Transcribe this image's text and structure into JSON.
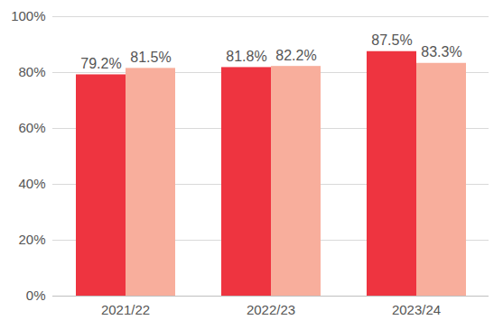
{
  "chart_data": {
    "type": "bar",
    "categories": [
      "2021/22",
      "2022/23",
      "2023/24"
    ],
    "series": [
      {
        "color": "#ee3440",
        "values": [
          79.2,
          81.8,
          87.5
        ],
        "value_labels": [
          "79.2%",
          "81.8%",
          "87.5%"
        ]
      },
      {
        "color": "#f8ae9c",
        "values": [
          81.5,
          82.2,
          83.3
        ],
        "value_labels": [
          "81.5%",
          "82.2%",
          "83.3%"
        ]
      }
    ],
    "ylim": [
      0,
      100
    ],
    "yticks": [
      {
        "value": 0,
        "label": "0%"
      },
      {
        "value": 20,
        "label": "20%"
      },
      {
        "value": 40,
        "label": "40%"
      },
      {
        "value": 60,
        "label": "60%"
      },
      {
        "value": 80,
        "label": "80%"
      },
      {
        "value": 100,
        "label": "100%"
      }
    ],
    "grid": true,
    "data_labels": true
  }
}
